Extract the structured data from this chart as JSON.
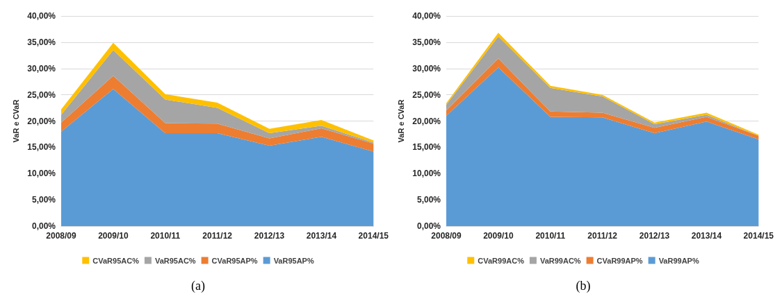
{
  "chart_data": [
    {
      "type": "area",
      "stacked": true,
      "ylabel": "VaR e CVaR",
      "annotations": [
        "(a)"
      ],
      "categories": [
        "2008/09",
        "2009/10",
        "2010/11",
        "2011/12",
        "2012/13",
        "2013/14",
        "2014/15"
      ],
      "series": [
        {
          "name": "VaR95AP%",
          "color": "#5b9bd5",
          "values": [
            18.0,
            26.1,
            17.7,
            17.7,
            15.3,
            17.0,
            14.2
          ]
        },
        {
          "name": "CVaR95AP%",
          "color": "#ed7d31",
          "values": [
            1.7,
            2.5,
            1.9,
            1.8,
            1.4,
            1.6,
            1.5
          ]
        },
        {
          "name": "VaR95AC%",
          "color": "#a5a5a5",
          "values": [
            1.5,
            4.9,
            4.5,
            3.0,
            1.0,
            0.5,
            0.2
          ]
        },
        {
          "name": "CVaR95AC%",
          "color": "#ffc000",
          "values": [
            1.0,
            1.4,
            1.0,
            1.0,
            0.8,
            1.1,
            0.4
          ]
        }
      ],
      "ylim": [
        0,
        40
      ],
      "yticks": [
        {
          "value": 0,
          "label": "0,00%"
        },
        {
          "value": 5,
          "label": "5,00%"
        },
        {
          "value": 10,
          "label": "10,00%"
        },
        {
          "value": 15,
          "label": "15,00%"
        },
        {
          "value": 20,
          "label": "20,00%"
        },
        {
          "value": 25,
          "label": "25,00%"
        },
        {
          "value": 30,
          "label": "30,00%"
        },
        {
          "value": 35,
          "label": "35,00%"
        },
        {
          "value": 40,
          "label": "40,00%"
        }
      ],
      "grid": "y",
      "legend": "bottom"
    },
    {
      "type": "area",
      "stacked": true,
      "ylabel": "VaR e CVaR",
      "annotations": [
        "(b)"
      ],
      "categories": [
        "2008/09",
        "2009/10",
        "2010/11",
        "2011/12",
        "2012/13",
        "2013/14",
        "2014/15"
      ],
      "series": [
        {
          "name": "VaR99AP%",
          "color": "#5b9bd5",
          "values": [
            21.0,
            30.2,
            20.8,
            20.7,
            17.7,
            19.9,
            16.5
          ]
        },
        {
          "name": "CVaR99AP%",
          "color": "#ed7d31",
          "values": [
            1.0,
            1.7,
            1.0,
            0.9,
            1.0,
            0.9,
            0.7
          ]
        },
        {
          "name": "VaR99AC%",
          "color": "#a5a5a5",
          "values": [
            1.1,
            4.2,
            4.5,
            3.1,
            0.7,
            0.4,
            0.0
          ]
        },
        {
          "name": "CVaR99AC%",
          "color": "#ffc000",
          "values": [
            0.3,
            0.7,
            0.4,
            0.3,
            0.3,
            0.4,
            0.2
          ]
        }
      ],
      "ylim": [
        0,
        40
      ],
      "yticks": [
        {
          "value": 0,
          "label": "0,00%"
        },
        {
          "value": 5,
          "label": "5,00%"
        },
        {
          "value": 10,
          "label": "10,00%"
        },
        {
          "value": 15,
          "label": "15,00%"
        },
        {
          "value": 20,
          "label": "20,00%"
        },
        {
          "value": 25,
          "label": "25,00%"
        },
        {
          "value": 30,
          "label": "30,00%"
        },
        {
          "value": 35,
          "label": "35,00%"
        },
        {
          "value": 40,
          "label": "40,00%"
        }
      ],
      "grid": "y",
      "legend": "bottom"
    }
  ]
}
